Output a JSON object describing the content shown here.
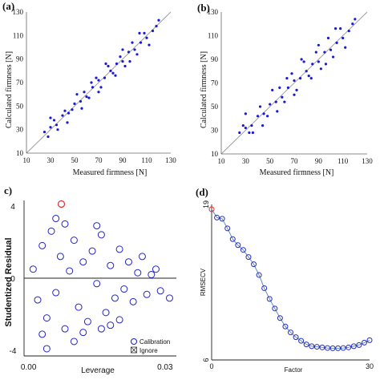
{
  "chart_data": [
    {
      "panel_label": "(a)",
      "type": "scatter",
      "xlabel": "Measured firmness [N]",
      "ylabel": "Calculated firmness [N]",
      "xlim": [
        10,
        130
      ],
      "ylim": [
        10,
        130
      ],
      "xticks": [
        "10",
        "30",
        "50",
        "70",
        "90",
        "110",
        "130"
      ],
      "yticks": [
        "10",
        "30",
        "50",
        "70",
        "90",
        "110",
        "130"
      ],
      "reference_line": "1:1 diagonal",
      "point_color": "#1a1ad6",
      "line_color": "#999999",
      "points": [
        [
          25,
          28
        ],
        [
          30,
          32
        ],
        [
          35,
          34
        ],
        [
          40,
          42
        ],
        [
          45,
          44
        ],
        [
          50,
          52
        ],
        [
          55,
          54
        ],
        [
          60,
          58
        ],
        [
          65,
          66
        ],
        [
          70,
          72
        ],
        [
          75,
          74
        ],
        [
          80,
          80
        ],
        [
          85,
          86
        ],
        [
          90,
          88
        ],
        [
          95,
          96
        ],
        [
          100,
          98
        ],
        [
          105,
          104
        ],
        [
          110,
          108
        ],
        [
          115,
          114
        ],
        [
          28,
          24
        ],
        [
          33,
          38
        ],
        [
          42,
          46
        ],
        [
          48,
          47
        ],
        [
          58,
          62
        ],
        [
          62,
          57
        ],
        [
          68,
          74
        ],
        [
          72,
          66
        ],
        [
          78,
          84
        ],
        [
          82,
          78
        ],
        [
          88,
          92
        ],
        [
          92,
          84
        ],
        [
          98,
          104
        ],
        [
          102,
          94
        ],
        [
          108,
          112
        ],
        [
          112,
          102
        ],
        [
          118,
          118
        ],
        [
          30,
          40
        ],
        [
          36,
          30
        ],
        [
          44,
          36
        ],
        [
          52,
          60
        ],
        [
          56,
          48
        ],
        [
          64,
          70
        ],
        [
          70,
          62
        ],
        [
          76,
          86
        ],
        [
          84,
          76
        ],
        [
          90,
          98
        ],
        [
          96,
          88
        ],
        [
          104,
          112
        ],
        [
          120,
          123
        ]
      ]
    },
    {
      "panel_label": "(b)",
      "type": "scatter",
      "xlabel": "Measured firmness [N]",
      "ylabel": "Calculated firmness [N]",
      "xlim": [
        10,
        130
      ],
      "ylim": [
        10,
        130
      ],
      "xticks": [
        "10",
        "30",
        "50",
        "70",
        "90",
        "110",
        "130"
      ],
      "yticks": [
        "10",
        "30",
        "50",
        "70",
        "90",
        "110",
        "130"
      ],
      "reference_line": "1:1 diagonal",
      "point_color": "#1a1ad6",
      "line_color": "#999999",
      "points": [
        [
          25,
          28
        ],
        [
          30,
          32
        ],
        [
          35,
          34
        ],
        [
          40,
          42
        ],
        [
          45,
          44
        ],
        [
          50,
          52
        ],
        [
          55,
          54
        ],
        [
          60,
          58
        ],
        [
          65,
          66
        ],
        [
          70,
          72
        ],
        [
          75,
          74
        ],
        [
          80,
          80
        ],
        [
          85,
          86
        ],
        [
          90,
          88
        ],
        [
          95,
          96
        ],
        [
          100,
          98
        ],
        [
          105,
          104
        ],
        [
          110,
          108
        ],
        [
          115,
          114
        ],
        [
          28,
          34
        ],
        [
          33,
          28
        ],
        [
          42,
          50
        ],
        [
          48,
          42
        ],
        [
          58,
          66
        ],
        [
          62,
          54
        ],
        [
          68,
          78
        ],
        [
          72,
          64
        ],
        [
          78,
          88
        ],
        [
          82,
          76
        ],
        [
          88,
          96
        ],
        [
          92,
          82
        ],
        [
          98,
          108
        ],
        [
          102,
          92
        ],
        [
          108,
          116
        ],
        [
          112,
          100
        ],
        [
          118,
          120
        ],
        [
          30,
          44
        ],
        [
          36,
          28
        ],
        [
          44,
          34
        ],
        [
          52,
          64
        ],
        [
          56,
          46
        ],
        [
          64,
          74
        ],
        [
          70,
          60
        ],
        [
          76,
          90
        ],
        [
          84,
          74
        ],
        [
          90,
          102
        ],
        [
          96,
          86
        ],
        [
          104,
          116
        ],
        [
          120,
          124
        ]
      ]
    },
    {
      "panel_label": "c)",
      "type": "scatter",
      "xlabel": "Leverage",
      "ylabel": "Studentized Residual",
      "xlim": [
        -0.001,
        0.0325
      ],
      "ylim": [
        -4.3,
        4.3
      ],
      "xticks": [
        "0.00",
        "0.03"
      ],
      "xtick_values": [
        0,
        0.03
      ],
      "yticks": [
        "4",
        "0",
        "-4"
      ],
      "ytick_values": [
        4,
        0,
        -4
      ],
      "reference_line": "y = 0",
      "marker": "open circle",
      "point_color": "#2424c8",
      "highlight_color": "#e03030",
      "legend": [
        "Calibration",
        "Ignore"
      ],
      "legend_position": "bottom-right",
      "points": [
        [
          0.001,
          0.5
        ],
        [
          0.002,
          -1.2
        ],
        [
          0.003,
          1.8
        ],
        [
          0.004,
          -2.2
        ],
        [
          0.005,
          2.6
        ],
        [
          0.006,
          -0.8
        ],
        [
          0.007,
          1.2
        ],
        [
          0.008,
          -2.8
        ],
        [
          0.009,
          0.4
        ],
        [
          0.01,
          2.1
        ],
        [
          0.011,
          -1.6
        ],
        [
          0.012,
          0.9
        ],
        [
          0.013,
          -2.4
        ],
        [
          0.014,
          1.5
        ],
        [
          0.015,
          -0.3
        ],
        [
          0.016,
          2.4
        ],
        [
          0.017,
          -1.9
        ],
        [
          0.018,
          0.7
        ],
        [
          0.019,
          -1.1
        ],
        [
          0.02,
          1.6
        ],
        [
          0.021,
          -0.6
        ],
        [
          0.022,
          0.9
        ],
        [
          0.023,
          -1.3
        ],
        [
          0.024,
          0.3
        ],
        [
          0.025,
          1.2
        ],
        [
          0.026,
          -0.9
        ],
        [
          0.027,
          0.2
        ],
        [
          0.028,
          0.5
        ],
        [
          0.029,
          -0.7
        ],
        [
          0.031,
          -1.1
        ],
        [
          0.003,
          -3.1
        ],
        [
          0.006,
          3.3
        ],
        [
          0.008,
          3.0
        ],
        [
          0.01,
          -3.5
        ],
        [
          0.012,
          -3.0
        ],
        [
          0.004,
          -3.9
        ],
        [
          0.015,
          2.9
        ],
        [
          0.018,
          -2.6
        ],
        [
          0.02,
          -2.3
        ],
        [
          0.016,
          -2.8
        ]
      ],
      "highlight_point": [
        0.0072,
        4.1
      ]
    },
    {
      "panel_label": "(d)",
      "type": "line",
      "xlabel": "Factor",
      "ylabel": "RMSECV",
      "xlim": [
        0,
        30
      ],
      "ylim": [
        6,
        19
      ],
      "xticks": [
        "0",
        "30"
      ],
      "xtick_values": [
        0,
        30
      ],
      "yticks": [
        "19",
        "6"
      ],
      "ytick_values": [
        19,
        6
      ],
      "line_color": "#5a8fc8",
      "marker_color": "#2c2cc0",
      "highlight_color": "#e03030",
      "x": [
        0,
        1,
        2,
        3,
        4,
        5,
        6,
        7,
        8,
        9,
        10,
        11,
        12,
        13,
        14,
        15,
        16,
        17,
        18,
        19,
        20,
        21,
        22,
        23,
        24,
        25,
        26,
        27,
        28,
        29,
        30
      ],
      "values": [
        18.6,
        17.9,
        17.8,
        17.0,
        16.1,
        15.6,
        15.2,
        14.6,
        14.0,
        13.1,
        12.0,
        11.1,
        10.3,
        9.5,
        8.8,
        8.3,
        7.9,
        7.6,
        7.3,
        7.15,
        7.1,
        7.05,
        7.0,
        6.98,
        6.98,
        7.0,
        7.05,
        7.15,
        7.25,
        7.45,
        7.65
      ]
    }
  ]
}
